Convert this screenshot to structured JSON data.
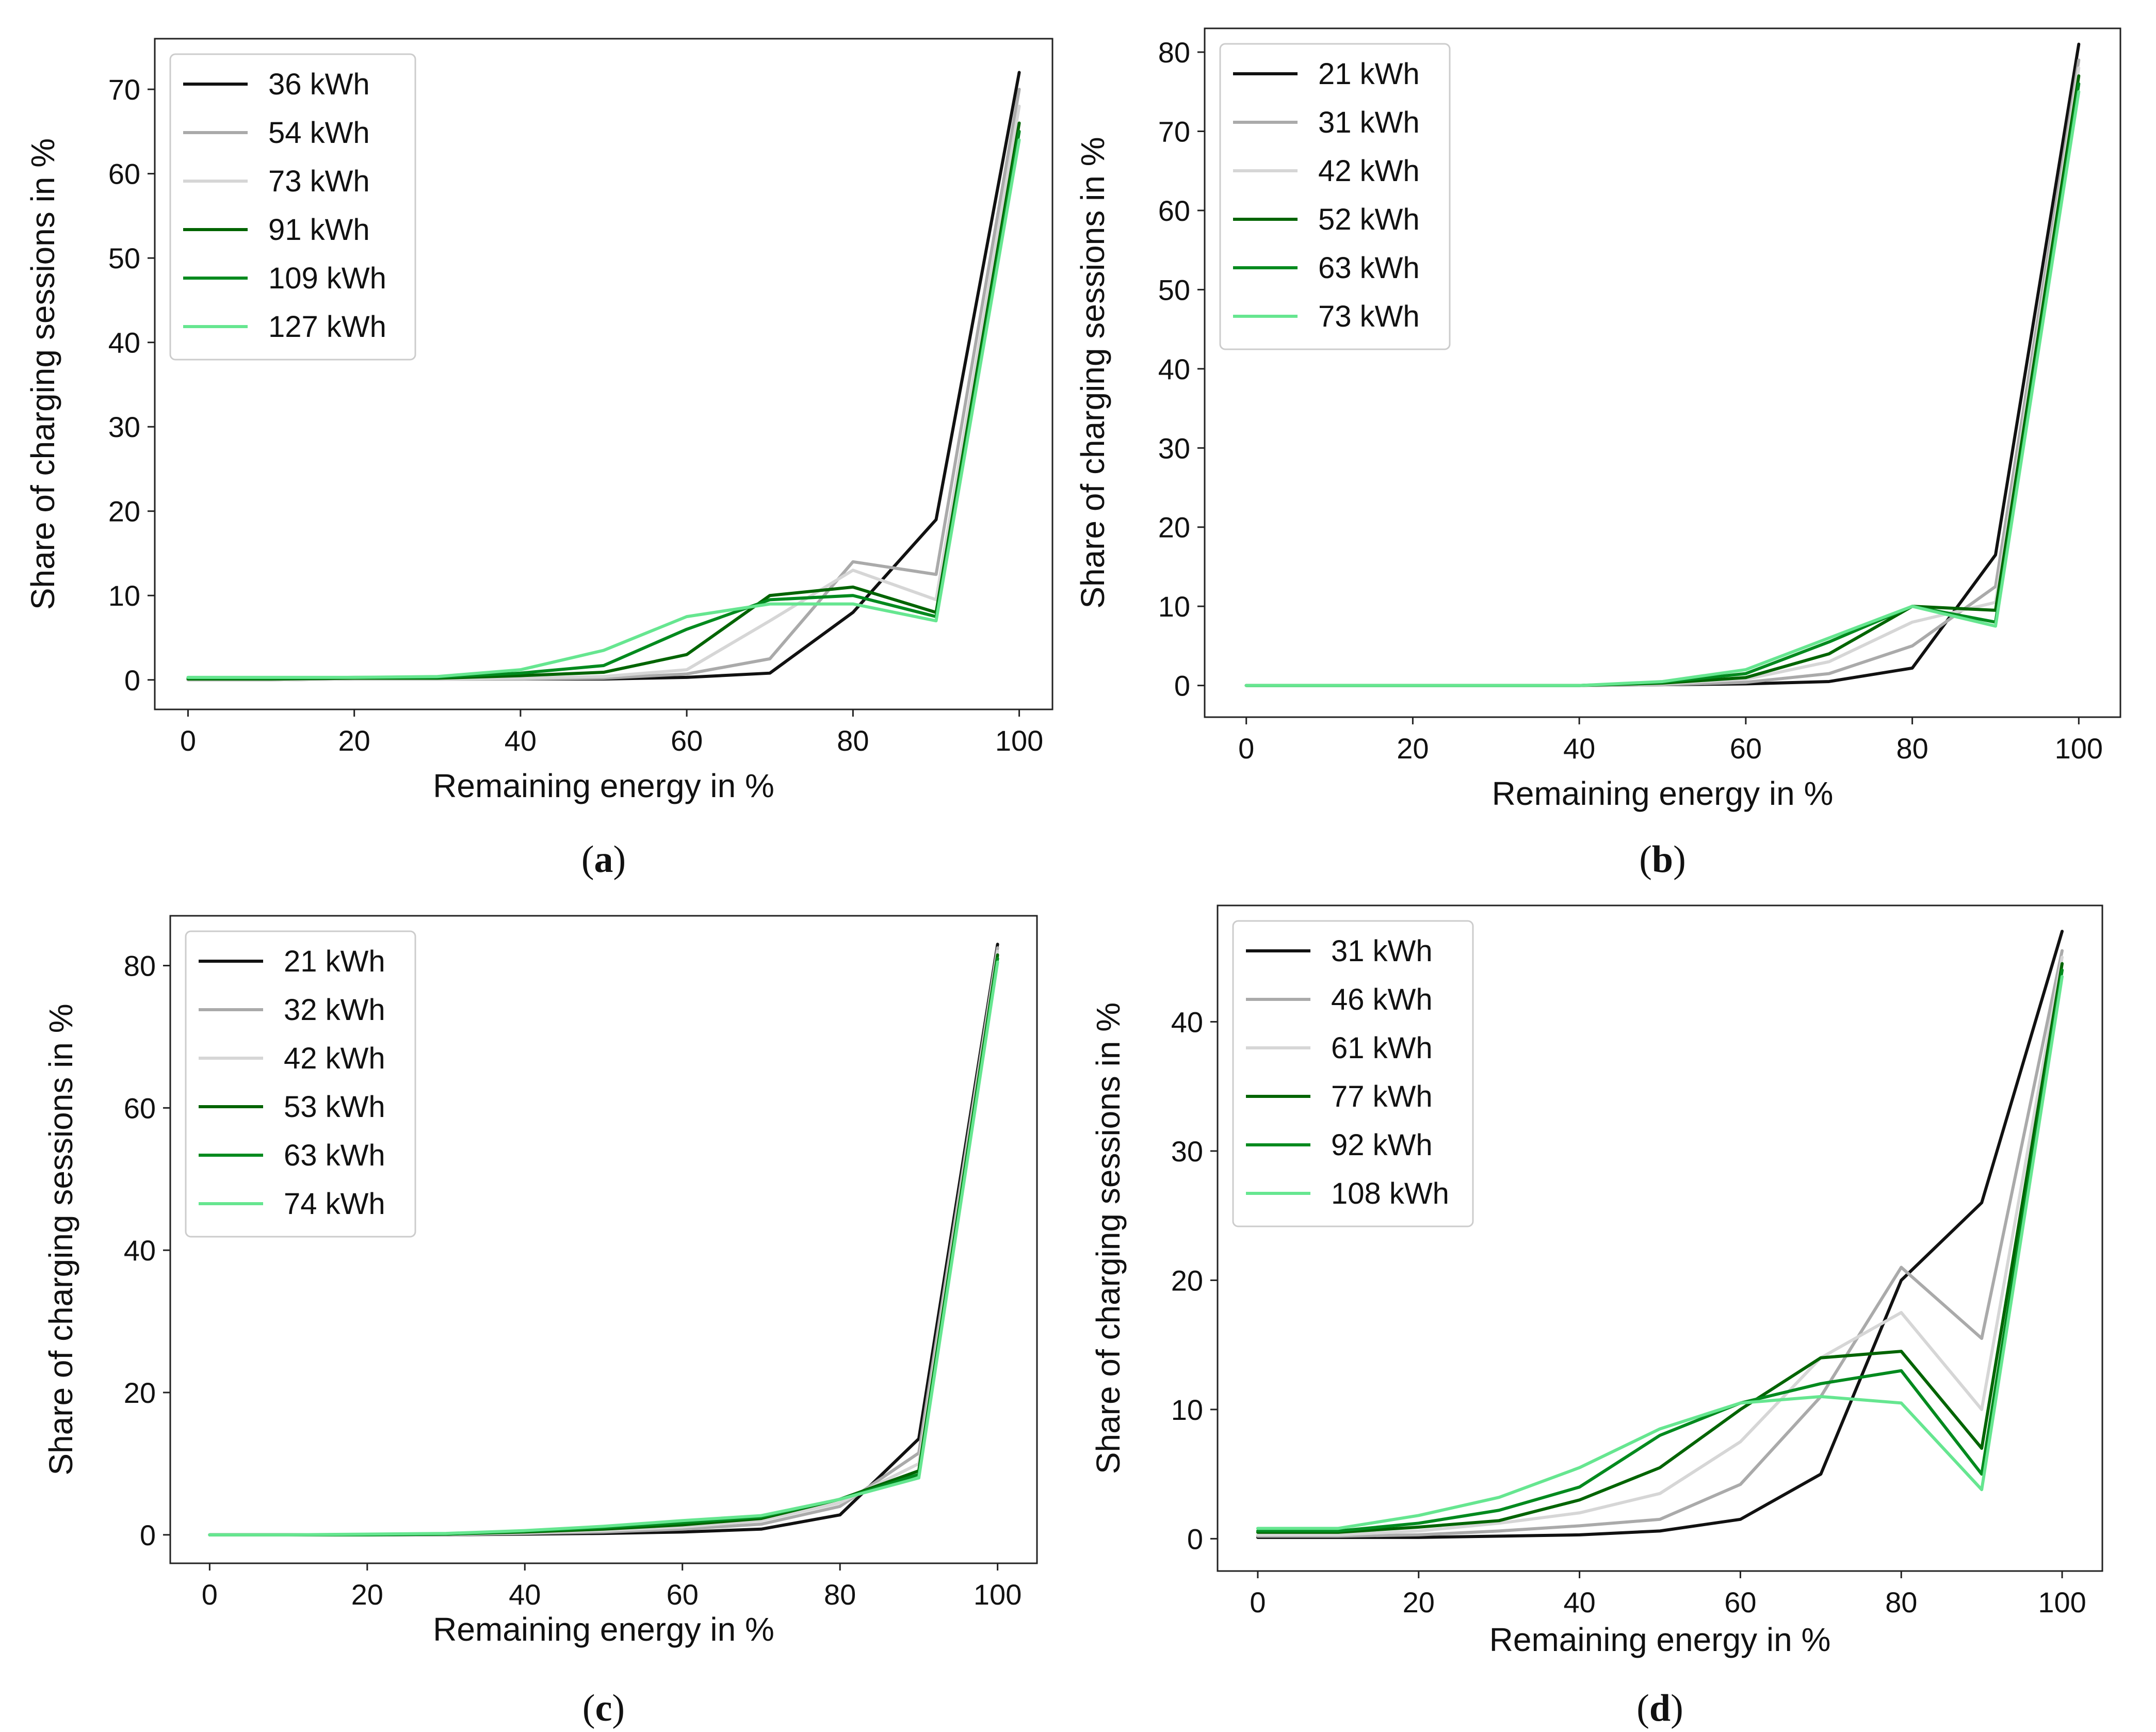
{
  "chart_data": [
    {
      "type": "line",
      "panel_label": "a",
      "xlabel": "Remaining energy in %",
      "ylabel": "Share of charging sessions in %",
      "xlim": [
        -4,
        104
      ],
      "ylim": [
        -3.5,
        76
      ],
      "xticks": [
        0,
        20,
        40,
        60,
        80,
        100
      ],
      "yticks": [
        0,
        10,
        20,
        30,
        40,
        50,
        60,
        70
      ],
      "legend_position": "top-left",
      "x": [
        0,
        10,
        20,
        30,
        40,
        50,
        60,
        70,
        80,
        90,
        100
      ],
      "series": [
        {
          "name": "36 kWh",
          "color": "#111111",
          "values": [
            0,
            0,
            0.1,
            0.1,
            0.1,
            0.1,
            0.3,
            0.8,
            8,
            19,
            72
          ]
        },
        {
          "name": "54 kWh",
          "color": "#aaaaaa",
          "values": [
            0,
            0,
            0.1,
            0.1,
            0.1,
            0.2,
            0.7,
            2.5,
            14,
            12.5,
            70
          ]
        },
        {
          "name": "73 kWh",
          "color": "#d6d6d6",
          "values": [
            0,
            0,
            0.1,
            0.1,
            0.2,
            0.4,
            1.2,
            7,
            13,
            9.5,
            68
          ]
        },
        {
          "name": "91 kWh",
          "color": "#006400",
          "values": [
            0.1,
            0.1,
            0.2,
            0.2,
            0.5,
            0.9,
            3,
            10,
            11,
            8,
            66
          ]
        },
        {
          "name": "109 kWh",
          "color": "#008a1e",
          "values": [
            0.2,
            0.2,
            0.3,
            0.3,
            0.8,
            1.7,
            6,
            9.5,
            10,
            7.5,
            65
          ]
        },
        {
          "name": "127 kWh",
          "color": "#66e690",
          "values": [
            0.3,
            0.3,
            0.3,
            0.4,
            1.2,
            3.5,
            7.5,
            9,
            9,
            7,
            64
          ]
        }
      ]
    },
    {
      "type": "line",
      "panel_label": "b",
      "xlabel": "Remaining energy in %",
      "ylabel": "Share of charging sessions in %",
      "xlim": [
        -5,
        105
      ],
      "ylim": [
        -4,
        83
      ],
      "xticks": [
        0,
        20,
        40,
        60,
        80,
        100
      ],
      "yticks": [
        0,
        10,
        20,
        30,
        40,
        50,
        60,
        70,
        80
      ],
      "legend_position": "top-left",
      "x": [
        0,
        10,
        20,
        30,
        40,
        50,
        60,
        70,
        80,
        90,
        100
      ],
      "series": [
        {
          "name": "21 kWh",
          "color": "#111111",
          "values": [
            0,
            0,
            0,
            0,
            0,
            0.1,
            0.2,
            0.5,
            2.2,
            16.5,
            81
          ]
        },
        {
          "name": "31 kWh",
          "color": "#aaaaaa",
          "values": [
            0,
            0,
            0,
            0,
            0,
            0.1,
            0.4,
            1.5,
            5,
            12.5,
            79
          ]
        },
        {
          "name": "42 kWh",
          "color": "#d6d6d6",
          "values": [
            0,
            0,
            0,
            0,
            0,
            0.2,
            0.8,
            3,
            8,
            10.5,
            78
          ]
        },
        {
          "name": "52 kWh",
          "color": "#006400",
          "values": [
            0,
            0,
            0,
            0,
            0,
            0.3,
            1,
            4,
            10,
            9.5,
            77
          ]
        },
        {
          "name": "63 kWh",
          "color": "#008a1e",
          "values": [
            0,
            0,
            0,
            0,
            0,
            0.4,
            1.5,
            5.5,
            10,
            8,
            76
          ]
        },
        {
          "name": "73 kWh",
          "color": "#66e690",
          "values": [
            0,
            0,
            0,
            0,
            0,
            0.5,
            2,
            6,
            10,
            7.5,
            75
          ]
        }
      ]
    },
    {
      "type": "line",
      "panel_label": "c",
      "xlabel": "Remaining energy in %",
      "ylabel": "Share of charging sessions in %",
      "xlim": [
        -5,
        105
      ],
      "ylim": [
        -4,
        87
      ],
      "xticks": [
        0,
        20,
        40,
        60,
        80,
        100
      ],
      "yticks": [
        0,
        20,
        40,
        60,
        80
      ],
      "legend_position": "top-left",
      "x": [
        0,
        10,
        20,
        30,
        40,
        50,
        60,
        70,
        80,
        90,
        100
      ],
      "series": [
        {
          "name": "21 kWh",
          "color": "#111111",
          "values": [
            0,
            0,
            0,
            0,
            0.1,
            0.2,
            0.4,
            0.8,
            2.8,
            13.5,
            83
          ]
        },
        {
          "name": "32 kWh",
          "color": "#aaaaaa",
          "values": [
            0,
            0,
            0,
            0,
            0.2,
            0.4,
            0.8,
            1.5,
            4,
            11.5,
            82.5
          ]
        },
        {
          "name": "42 kWh",
          "color": "#d6d6d6",
          "values": [
            0,
            0,
            0,
            0.1,
            0.3,
            0.6,
            1.1,
            2,
            4.5,
            10,
            82
          ]
        },
        {
          "name": "53 kWh",
          "color": "#006400",
          "values": [
            0,
            0,
            0,
            0.1,
            0.4,
            0.8,
            1.4,
            2.3,
            5,
            9,
            81.5
          ]
        },
        {
          "name": "63 kWh",
          "color": "#008a1e",
          "values": [
            0,
            0,
            0,
            0.1,
            0.5,
            1,
            1.7,
            2.5,
            5,
            8.5,
            81
          ]
        },
        {
          "name": "74 kWh",
          "color": "#66e690",
          "values": [
            0,
            0,
            0.1,
            0.2,
            0.6,
            1.2,
            2,
            2.7,
            5,
            8,
            80.5
          ]
        }
      ]
    },
    {
      "type": "line",
      "panel_label": "d",
      "xlabel": "Remaining energy in %",
      "ylabel": "Share of charging sessions in %",
      "xlim": [
        -5,
        105
      ],
      "ylim": [
        -2.5,
        49
      ],
      "xticks": [
        0,
        20,
        40,
        60,
        80,
        100
      ],
      "yticks": [
        0,
        10,
        20,
        30,
        40
      ],
      "legend_position": "top-left",
      "x": [
        0,
        10,
        20,
        30,
        40,
        50,
        60,
        70,
        80,
        90,
        100
      ],
      "series": [
        {
          "name": "31 kWh",
          "color": "#111111",
          "values": [
            0.1,
            0.1,
            0.1,
            0.2,
            0.3,
            0.6,
            1.5,
            5,
            20,
            26,
            47
          ]
        },
        {
          "name": "46 kWh",
          "color": "#aaaaaa",
          "values": [
            0.2,
            0.2,
            0.3,
            0.6,
            1,
            1.5,
            4.2,
            11,
            21,
            15.5,
            45.5
          ]
        },
        {
          "name": "61 kWh",
          "color": "#d6d6d6",
          "values": [
            0.3,
            0.3,
            0.6,
            1.2,
            2,
            3.5,
            7.5,
            14,
            17.5,
            10,
            45
          ]
        },
        {
          "name": "77 kWh",
          "color": "#006400",
          "values": [
            0.5,
            0.5,
            0.9,
            1.4,
            3,
            5.5,
            10,
            14,
            14.5,
            7,
            44.5
          ]
        },
        {
          "name": "92 kWh",
          "color": "#008a1e",
          "values": [
            0.6,
            0.6,
            1.2,
            2.2,
            4,
            8,
            10.5,
            12,
            13,
            5,
            44
          ]
        },
        {
          "name": "108 kWh",
          "color": "#66e690",
          "values": [
            0.8,
            0.8,
            1.8,
            3.2,
            5.5,
            8.5,
            10.5,
            11,
            10.5,
            3.8,
            43.5
          ]
        }
      ]
    }
  ]
}
